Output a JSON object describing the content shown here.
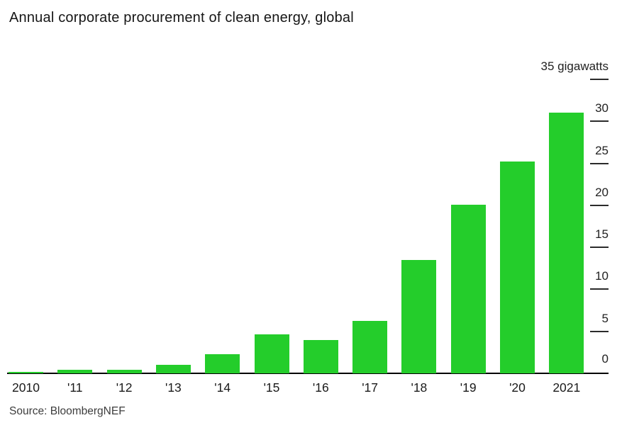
{
  "title": "Annual corporate procurement of clean energy, global",
  "source": "Source: BloombergNEF",
  "colors": {
    "bar": "#24cd2b",
    "axis_line": "#000000",
    "tick_dash": "#2b2b2b",
    "text": "#1a1a1a",
    "source_text": "#3d3d3d",
    "background": "#ffffff"
  },
  "chart_data": {
    "type": "bar",
    "title": "Annual corporate procurement of clean energy, global",
    "categories": [
      "2010",
      "'11",
      "'12",
      "'13",
      "'14",
      "'15",
      "'16",
      "'17",
      "'18",
      "'19",
      "'20",
      "2021"
    ],
    "values": [
      0.2,
      0.4,
      0.4,
      1.0,
      2.3,
      4.6,
      4.0,
      6.2,
      13.5,
      20.1,
      25.2,
      31.0
    ],
    "series_name": "Annual corporate clean energy procurement",
    "xlabel": "",
    "ylabel": "gigawatts",
    "unit": "gigawatts",
    "ylim": [
      0,
      35
    ],
    "yticks": [
      0,
      5,
      10,
      15,
      20,
      25,
      30,
      35
    ],
    "ytick_top_label": "35 gigawatts",
    "y_axis_side": "right",
    "grid": false,
    "legend_position": "none",
    "bar_color": "#24cd2b",
    "source": "Source: BloombergNEF"
  }
}
